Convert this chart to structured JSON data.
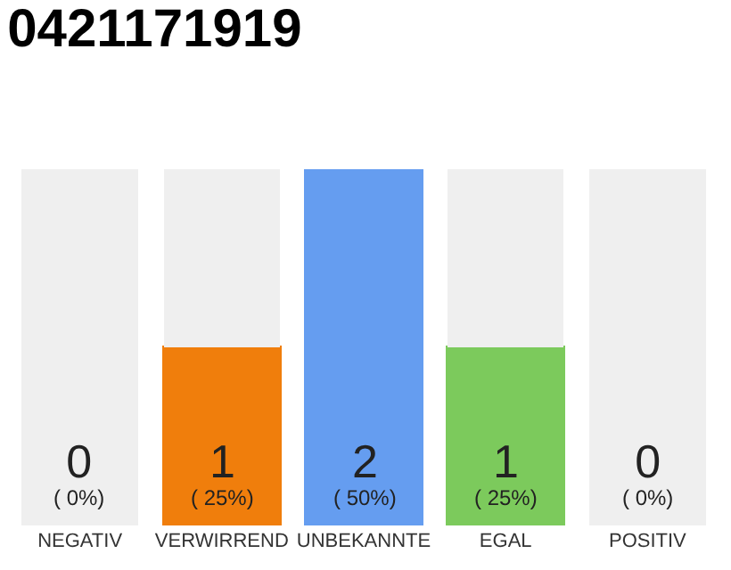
{
  "chart_data": {
    "type": "bar",
    "title": "0421171919",
    "stacked": true,
    "ylim": [
      0,
      2
    ],
    "tick_labels": "x",
    "categories": [
      "NEGATIV",
      "VERWIRREND",
      "UNBEKANNTE",
      "EGAL",
      "POSITIV"
    ],
    "series": [
      {
        "values": [
          0,
          1,
          2,
          1,
          0
        ],
        "colors": [
          "#e0233c",
          "#f07e0c",
          "#659df0",
          "#7cca5c",
          "#23a24a"
        ],
        "value_labels": [
          "0\n( 0%)",
          "1\n( 25%)",
          "2\n( 50%)",
          "1\n( 25%)",
          "0\n( 0%)"
        ]
      },
      {
        "values": [
          2,
          1,
          0,
          1,
          2
        ],
        "color": "#efefef"
      }
    ]
  }
}
